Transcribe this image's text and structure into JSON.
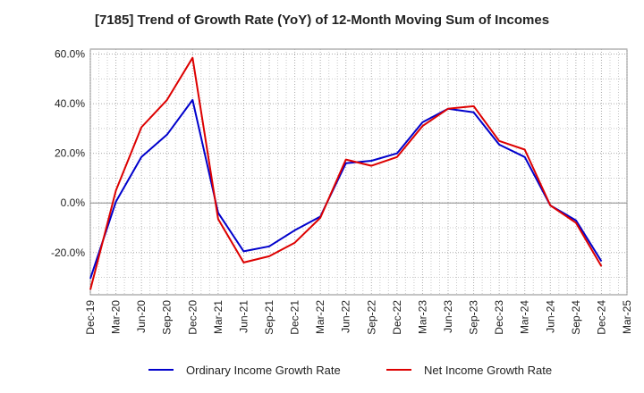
{
  "chart_data": {
    "type": "line",
    "title": "[7185]  Trend of Growth Rate (YoY) of 12-Month Moving Sum of Incomes",
    "x": [
      "Dec-19",
      "Mar-20",
      "Jun-20",
      "Sep-20",
      "Dec-20",
      "Mar-21",
      "Jun-21",
      "Sep-21",
      "Dec-21",
      "Mar-22",
      "Jun-22",
      "Sep-22",
      "Dec-22",
      "Mar-23",
      "Jun-23",
      "Sep-23",
      "Dec-23",
      "Mar-24",
      "Jun-24",
      "Sep-24",
      "Dec-24",
      "Mar-25"
    ],
    "x_tick_labels": [
      "Dec-19",
      "Mar-20",
      "Jun-20",
      "Sep-20",
      "Dec-20",
      "Mar-21",
      "Jun-21",
      "Sep-21",
      "Dec-21",
      "Mar-22",
      "Jun-22",
      "Sep-22",
      "Dec-22",
      "Mar-23",
      "Jun-23",
      "Sep-23",
      "Dec-23",
      "Mar-24",
      "Jun-24",
      "Sep-24",
      "Dec-24",
      "Mar-25"
    ],
    "ylim": [
      -37,
      62
    ],
    "y_ticks": [
      60,
      40,
      20,
      0,
      -20
    ],
    "y_tick_labels": [
      "60.0%",
      "40.0%",
      "20.0%",
      "0.0%",
      "-20.0%"
    ],
    "grid": true,
    "legend_position": "bottom",
    "series": [
      {
        "name": "Ordinary Income Growth Rate",
        "color": "#0000cc",
        "values": [
          -30.5,
          0.5,
          18.5,
          27.5,
          41.5,
          -4.0,
          -19.5,
          -17.5,
          -11.0,
          -5.5,
          16.0,
          17.0,
          20.0,
          32.5,
          38.0,
          36.5,
          23.5,
          18.5,
          -1.0,
          -7.0,
          -23.5,
          null
        ]
      },
      {
        "name": "Net Income Growth Rate",
        "color": "#dd0000",
        "values": [
          -35.0,
          5.0,
          30.5,
          41.5,
          58.5,
          -6.5,
          -24.0,
          -21.5,
          -16.0,
          -6.0,
          17.5,
          15.0,
          18.5,
          31.0,
          38.0,
          39.0,
          25.0,
          21.5,
          -1.0,
          -8.0,
          -25.5,
          null
        ]
      }
    ]
  }
}
